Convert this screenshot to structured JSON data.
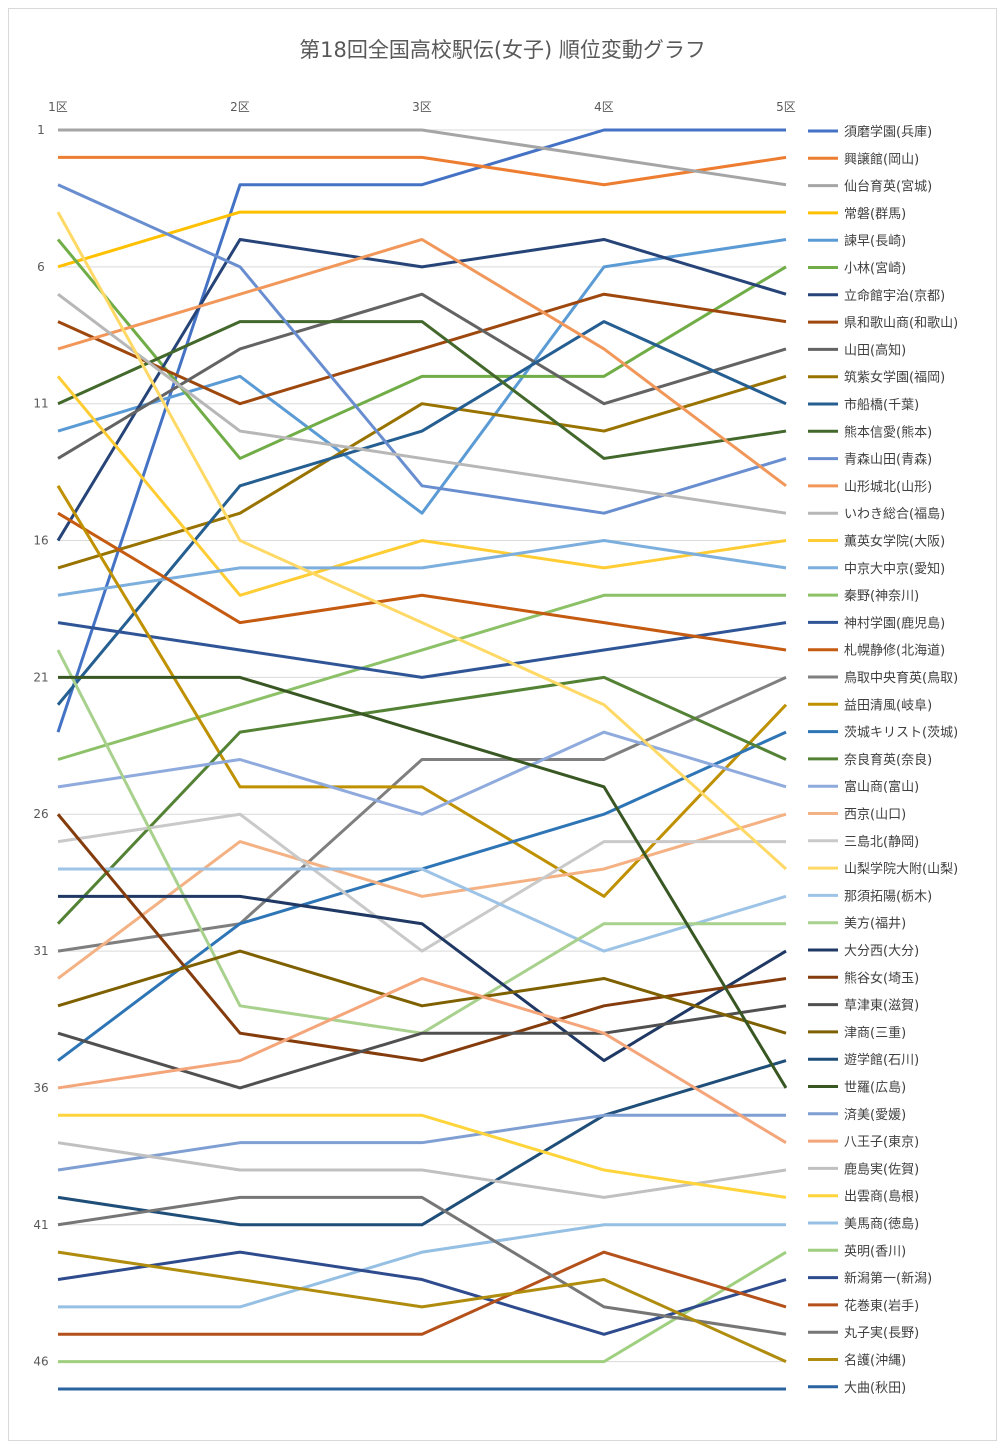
{
  "title": "第18回全国高校駅伝(女子) 順位変動グラフ",
  "chart_data": {
    "type": "line",
    "title": "第18回全国高校駅伝(女子) 順位変動グラフ",
    "x": [
      "1区",
      "2区",
      "3区",
      "4区",
      "5区"
    ],
    "y_ticks": [
      1,
      6,
      11,
      16,
      21,
      26,
      31,
      36,
      41,
      46
    ],
    "ylim": [
      1,
      47
    ],
    "y_reversed": true,
    "grid": true,
    "legend": "right",
    "series": [
      {
        "name": "須磨学園(兵庫)",
        "color": "#4472C4",
        "values": [
          23,
          3,
          3,
          1,
          1
        ]
      },
      {
        "name": "興譲館(岡山)",
        "color": "#ED7D31",
        "values": [
          2,
          2,
          2,
          3,
          2
        ]
      },
      {
        "name": "仙台育英(宮城)",
        "color": "#A5A5A5",
        "values": [
          1,
          1,
          1,
          2,
          3
        ]
      },
      {
        "name": "常磐(群馬)",
        "color": "#FFC000",
        "values": [
          6,
          4,
          4,
          4,
          4
        ]
      },
      {
        "name": "諫早(長崎)",
        "color": "#5B9BD5",
        "values": [
          12,
          10,
          15,
          6,
          5
        ]
      },
      {
        "name": "小林(宮崎)",
        "color": "#70AD47",
        "values": [
          5,
          13,
          10,
          10,
          6
        ]
      },
      {
        "name": "立命館宇治(京都)",
        "color": "#264478",
        "values": [
          16,
          5,
          6,
          5,
          7
        ]
      },
      {
        "name": "県和歌山商(和歌山)",
        "color": "#9E480E",
        "values": [
          8,
          11,
          9,
          7,
          8
        ]
      },
      {
        "name": "山田(高知)",
        "color": "#636363",
        "values": [
          13,
          9,
          7,
          11,
          9
        ]
      },
      {
        "name": "筑紫女学園(福岡)",
        "color": "#997300",
        "values": [
          17,
          15,
          11,
          12,
          10
        ]
      },
      {
        "name": "市船橋(千葉)",
        "color": "#255E91",
        "values": [
          22,
          14,
          12,
          8,
          11
        ]
      },
      {
        "name": "熊本信愛(熊本)",
        "color": "#43682B",
        "values": [
          11,
          8,
          8,
          13,
          12
        ]
      },
      {
        "name": "青森山田(青森)",
        "color": "#698ED0",
        "values": [
          3,
          6,
          14,
          15,
          13
        ]
      },
      {
        "name": "山形城北(山形)",
        "color": "#F1975A",
        "values": [
          9,
          7,
          5,
          9,
          14
        ]
      },
      {
        "name": "いわき総合(福島)",
        "color": "#B7B7B7",
        "values": [
          7,
          12,
          13,
          14,
          15
        ]
      },
      {
        "name": "薫英女学院(大阪)",
        "color": "#FFCD33",
        "values": [
          10,
          18,
          16,
          17,
          16
        ]
      },
      {
        "name": "中京大中京(愛知)",
        "color": "#7CAFDD",
        "values": [
          18,
          17,
          17,
          16,
          17
        ]
      },
      {
        "name": "秦野(神奈川)",
        "color": "#8CC168",
        "values": [
          24,
          22,
          20,
          18,
          18
        ]
      },
      {
        "name": "神村学園(鹿児島)",
        "color": "#2F5597",
        "values": [
          19,
          20,
          21,
          20,
          19
        ]
      },
      {
        "name": "札幌静修(北海道)",
        "color": "#C55A11",
        "values": [
          15,
          19,
          18,
          19,
          20
        ]
      },
      {
        "name": "鳥取中央育英(鳥取)",
        "color": "#7F7F7F",
        "values": [
          31,
          30,
          24,
          24,
          21
        ]
      },
      {
        "name": "益田清風(岐阜)",
        "color": "#BF9000",
        "values": [
          14,
          25,
          25,
          29,
          22
        ]
      },
      {
        "name": "茨城キリスト(茨城)",
        "color": "#2E75B6",
        "values": [
          35,
          30,
          28,
          26,
          23
        ]
      },
      {
        "name": "奈良育英(奈良)",
        "color": "#548235",
        "values": [
          30,
          23,
          22,
          21,
          24
        ]
      },
      {
        "name": "富山商(富山)",
        "color": "#8FAADC",
        "values": [
          25,
          24,
          26,
          23,
          25
        ]
      },
      {
        "name": "西京(山口)",
        "color": "#F4B183",
        "values": [
          32,
          27,
          29,
          28,
          26
        ]
      },
      {
        "name": "三島北(静岡)",
        "color": "#C9C9C9",
        "values": [
          27,
          26,
          31,
          27,
          27
        ]
      },
      {
        "name": "山梨学院大附(山梨)",
        "color": "#FFD966",
        "values": [
          4,
          16,
          19,
          22,
          28
        ]
      },
      {
        "name": "那須拓陽(栃木)",
        "color": "#9DC3E6",
        "values": [
          28,
          28,
          28,
          31,
          29
        ]
      },
      {
        "name": "美方(福井)",
        "color": "#A9D18E",
        "values": [
          20,
          33,
          34,
          30,
          30
        ]
      },
      {
        "name": "大分西(大分)",
        "color": "#1F3864",
        "values": [
          29,
          29,
          30,
          35,
          31
        ]
      },
      {
        "name": "熊谷女(埼玉)",
        "color": "#843C0C",
        "values": [
          26,
          34,
          35,
          33,
          32
        ]
      },
      {
        "name": "草津東(滋賀)",
        "color": "#505050",
        "values": [
          34,
          36,
          34,
          34,
          33
        ]
      },
      {
        "name": "津商(三重)",
        "color": "#7F6000",
        "values": [
          33,
          31,
          33,
          32,
          34
        ]
      },
      {
        "name": "遊学館(石川)",
        "color": "#1F4E79",
        "values": [
          40,
          41,
          41,
          37,
          35
        ]
      },
      {
        "name": "世羅(広島)",
        "color": "#385723",
        "values": [
          21,
          21,
          23,
          25,
          36
        ]
      },
      {
        "name": "済美(愛媛)",
        "color": "#7F9FD3",
        "values": [
          39,
          38,
          38,
          37,
          37
        ]
      },
      {
        "name": "八王子(東京)",
        "color": "#F4A57A",
        "values": [
          36,
          35,
          32,
          34,
          38
        ]
      },
      {
        "name": "鹿島実(佐賀)",
        "color": "#C0C0C0",
        "values": [
          38,
          39,
          39,
          40,
          39
        ]
      },
      {
        "name": "出雲商(島根)",
        "color": "#FFD43B",
        "values": [
          37,
          37,
          37,
          39,
          40
        ]
      },
      {
        "name": "美馬商(徳島)",
        "color": "#95BFE3",
        "values": [
          44,
          44,
          42,
          41,
          41
        ]
      },
      {
        "name": "英明(香川)",
        "color": "#9FCF7F",
        "values": [
          46,
          46,
          46,
          46,
          42
        ]
      },
      {
        "name": "新潟第一(新潟)",
        "color": "#2E4B8E",
        "values": [
          43,
          42,
          43,
          45,
          43
        ]
      },
      {
        "name": "花巻東(岩手)",
        "color": "#B4511A",
        "values": [
          45,
          45,
          45,
          42,
          44
        ]
      },
      {
        "name": "丸子実(長野)",
        "color": "#767676",
        "values": [
          41,
          40,
          40,
          44,
          45
        ]
      },
      {
        "name": "名護(沖縄)",
        "color": "#B08C0E",
        "values": [
          42,
          43,
          44,
          43,
          46
        ]
      },
      {
        "name": "大曲(秋田)",
        "color": "#2B63A0",
        "values": [
          47,
          47,
          47,
          47,
          47
        ]
      }
    ]
  }
}
